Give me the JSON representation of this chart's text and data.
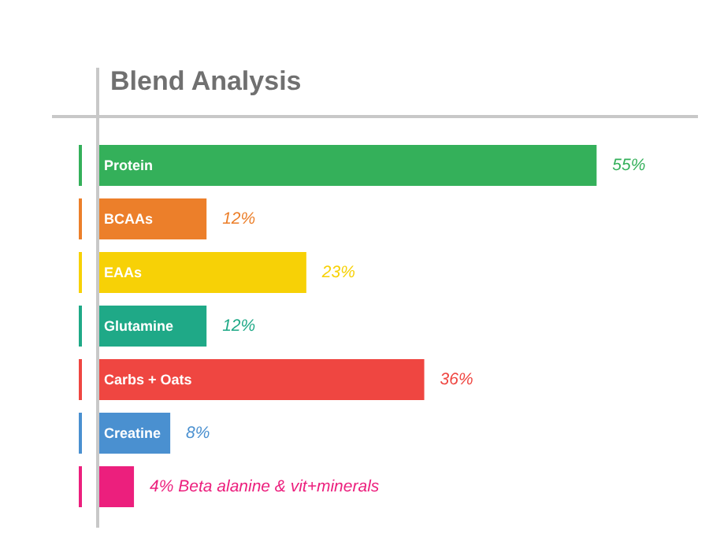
{
  "chart_data": {
    "type": "bar",
    "orientation": "horizontal",
    "title": "Blend Analysis",
    "categories": [
      "Protein",
      "BCAAs",
      "EAAs",
      "Glutamine",
      "Carbs + Oats",
      "Creatine",
      "Beta alanine & vit+minerals"
    ],
    "values": [
      55,
      12,
      23,
      12,
      36,
      8,
      4
    ],
    "value_labels": [
      "55%",
      "12%",
      "23%",
      "12%",
      "36%",
      "8%",
      "4%"
    ],
    "colors": [
      "#34b05a",
      "#ec7f2a",
      "#f7d106",
      "#1fa987",
      "#ef4641",
      "#4a90d0",
      "#ec1f7d"
    ],
    "xlim": [
      0,
      66
    ]
  }
}
